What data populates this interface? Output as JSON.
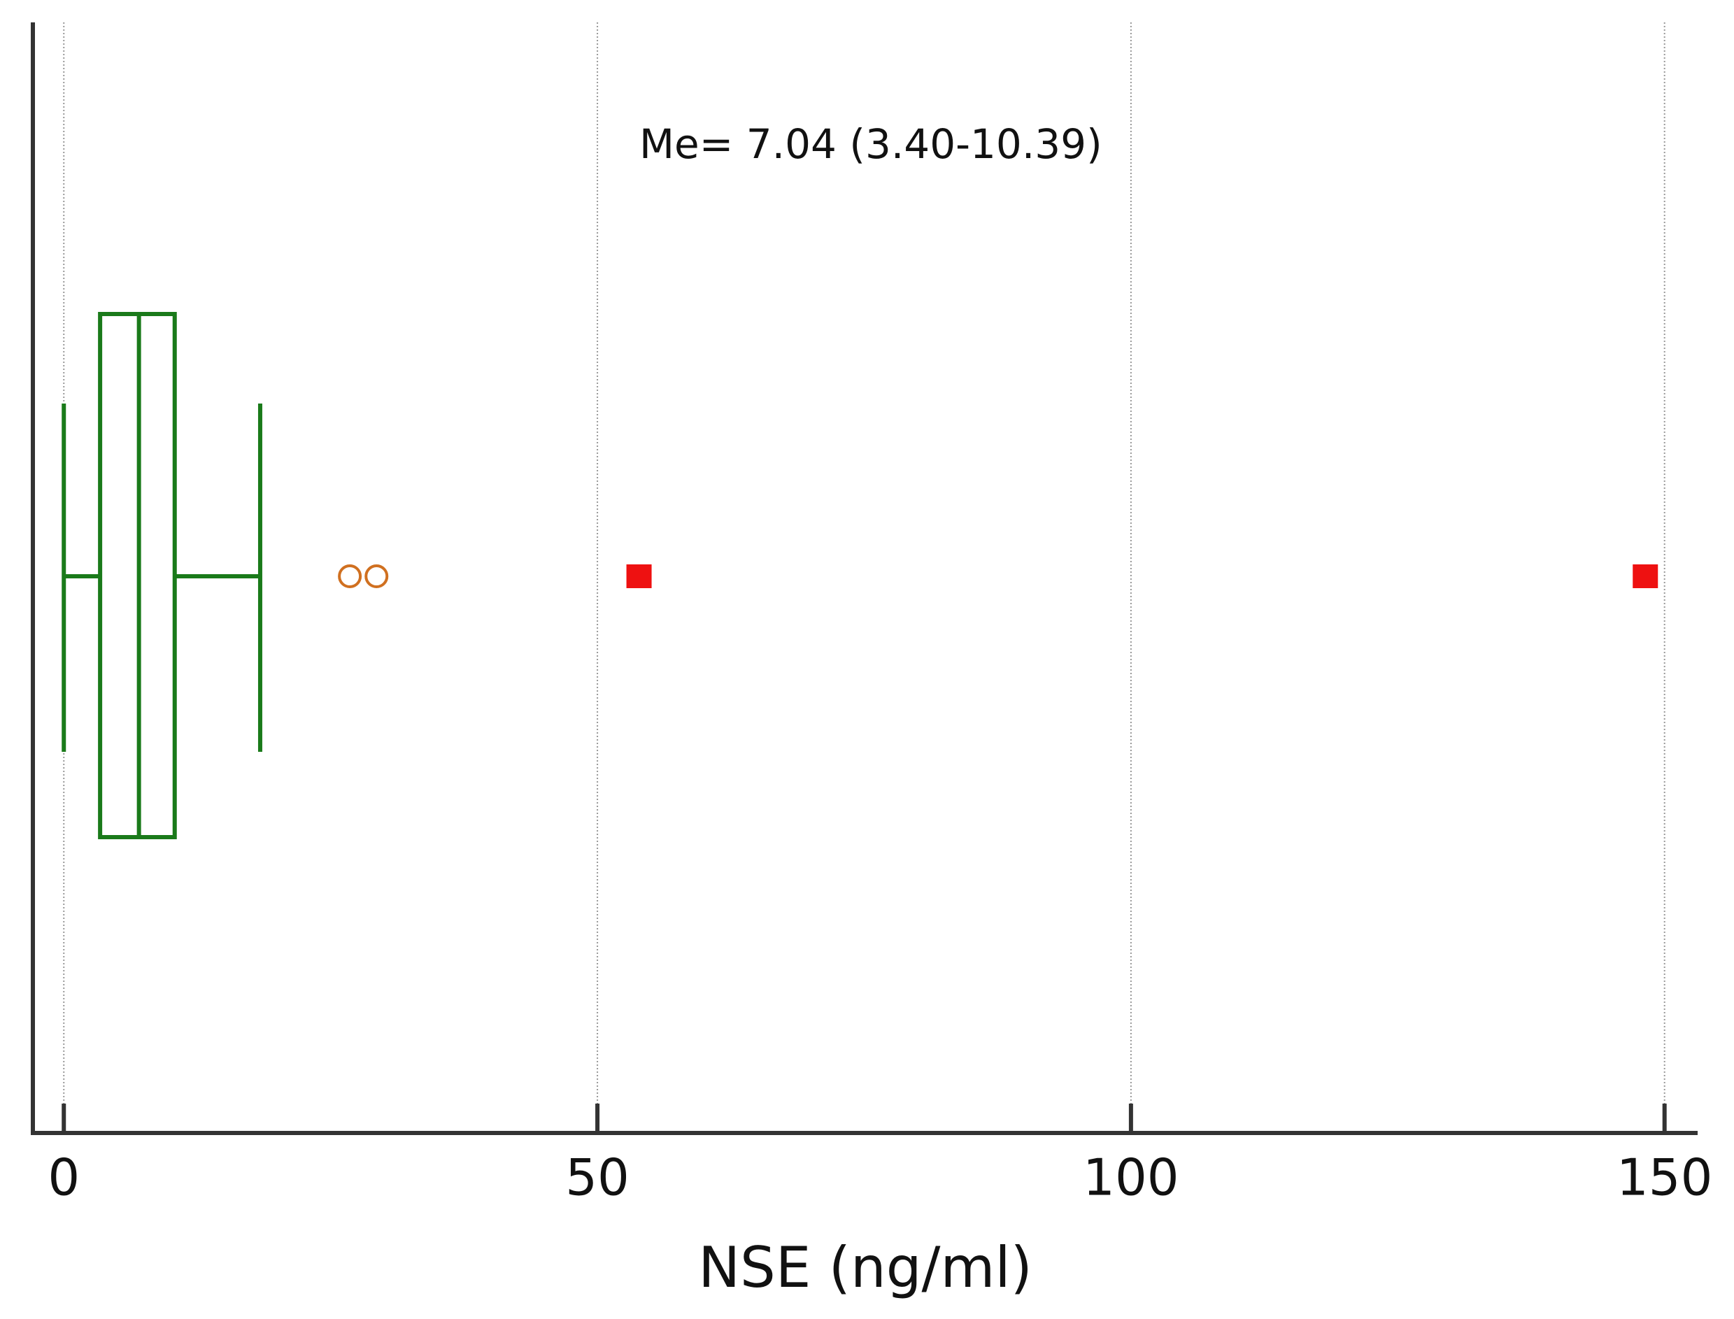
{
  "chart_data": {
    "type": "box",
    "annotation": "Me= 7.04 (3.40-10.39)",
    "xlabel": "NSE (ng/ml)",
    "xlim": [
      -2.9,
      153.1
    ],
    "xticks": [
      0,
      50,
      100,
      150
    ],
    "grid": true,
    "series": [
      {
        "color": "#1a7a1a",
        "min": 0,
        "q1": 3.4,
        "median": 7.04,
        "q3": 10.39,
        "max": 18.4,
        "outliers": [
          26.8,
          29.3
        ],
        "outlier_color": "#d07020",
        "extremes": [
          53.9,
          148.2
        ],
        "extreme_color": "#ee1111"
      }
    ]
  }
}
